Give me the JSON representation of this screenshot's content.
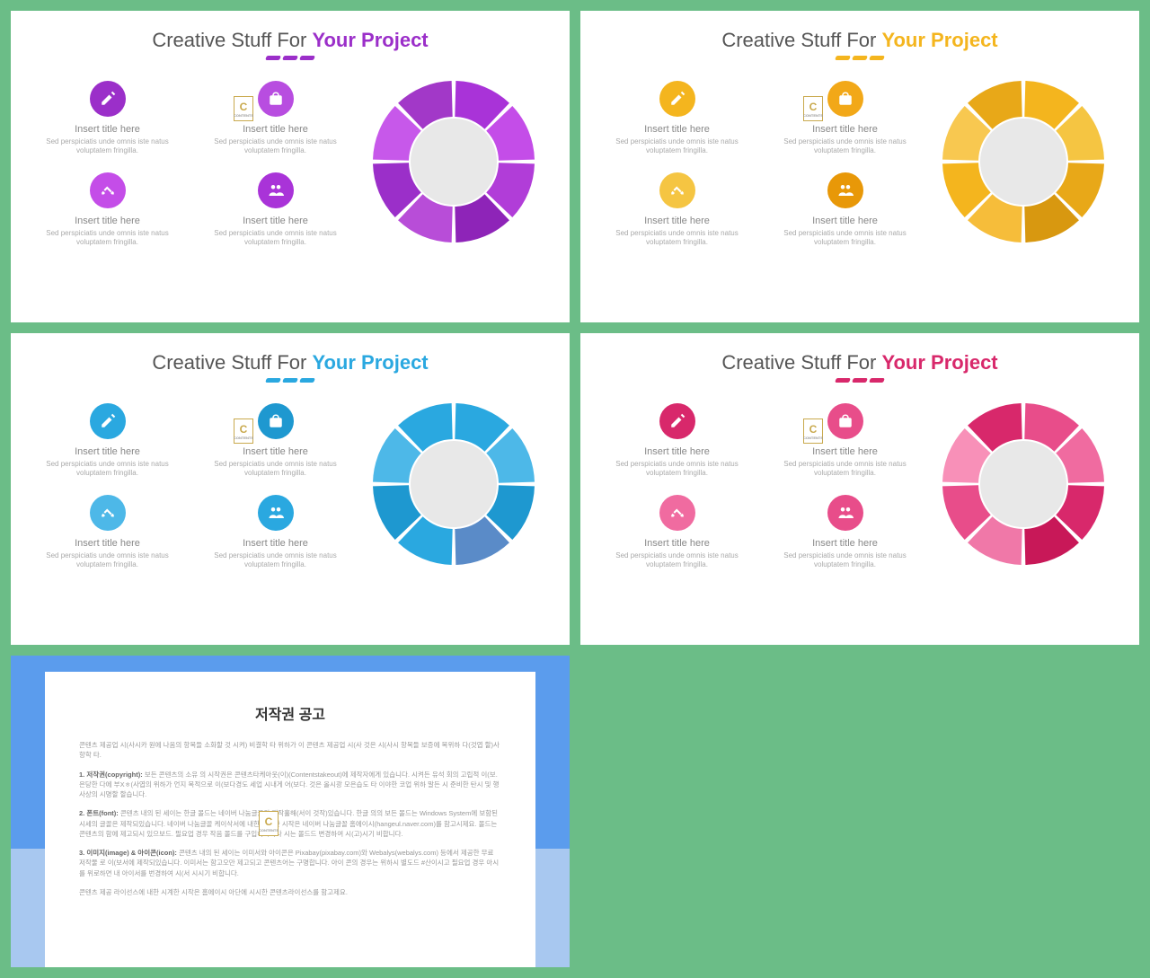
{
  "slides": [
    {
      "title_prefix": "Creative Stuff For ",
      "title_accent": "Your Project",
      "accent_color": "#9b2fc9",
      "donut_segments": [
        "#a933d8",
        "#c44de8",
        "#b13dd8",
        "#8e24b8",
        "#b84dd8",
        "#9b2fc9",
        "#c758ea",
        "#a238c8"
      ],
      "donut_center": "#e8e8e8",
      "item_colors": [
        "#9b2fc9",
        "#b84de0",
        "#c44de8",
        "#a933d8"
      ],
      "items": [
        {
          "icon": "edit",
          "title": "Insert title here",
          "desc": "Sed perspiciatis unde omnis iste natus voluptatem fringilla."
        },
        {
          "icon": "bag",
          "title": "Insert title here",
          "desc": "Sed perspiciatis unde omnis iste natus voluptatem fringilla."
        },
        {
          "icon": "handshake",
          "title": "Insert title here",
          "desc": "Sed perspiciatis unde omnis iste natus voluptatem fringilla."
        },
        {
          "icon": "people",
          "title": "Insert title here",
          "desc": "Sed perspiciatis unde omnis iste natus voluptatem fringilla."
        }
      ]
    },
    {
      "title_prefix": "Creative Stuff For ",
      "title_accent": "Your Project",
      "accent_color": "#f4b51e",
      "donut_segments": [
        "#f4b51e",
        "#f5c542",
        "#e8a818",
        "#d89810",
        "#f6bd3a",
        "#f4b51e",
        "#f8c850",
        "#e8a818"
      ],
      "donut_center": "#e8e8e8",
      "item_colors": [
        "#f4b51e",
        "#f2a818",
        "#f5c542",
        "#e89808"
      ],
      "items": [
        {
          "icon": "edit",
          "title": "Insert title here",
          "desc": "Sed perspiciatis unde omnis iste natus voluptatem fringilla."
        },
        {
          "icon": "bag",
          "title": "Insert title here",
          "desc": "Sed perspiciatis unde omnis iste natus voluptatem fringilla."
        },
        {
          "icon": "handshake",
          "title": "Insert title here",
          "desc": "Sed perspiciatis unde omnis iste natus voluptatem fringilla."
        },
        {
          "icon": "people",
          "title": "Insert title here",
          "desc": "Sed perspiciatis unde omnis iste natus voluptatem fringilla."
        }
      ]
    },
    {
      "title_prefix": "Creative Stuff For ",
      "title_accent": "Your Project",
      "accent_color": "#2aa8e0",
      "donut_segments": [
        "#2aa8e0",
        "#4db8e8",
        "#1e98d0",
        "#5a8bc8",
        "#2aa8e0",
        "#1e98d0",
        "#4db8e8",
        "#2aa8e0"
      ],
      "donut_center": "#e8e8e8",
      "item_colors": [
        "#2aa8e0",
        "#1e98d0",
        "#4db8e8",
        "#2aa8e0"
      ],
      "items": [
        {
          "icon": "edit",
          "title": "Insert title here",
          "desc": "Sed perspiciatis unde omnis iste natus voluptatem fringilla."
        },
        {
          "icon": "bag",
          "title": "Insert title here",
          "desc": "Sed perspiciatis unde omnis iste natus voluptatem fringilla."
        },
        {
          "icon": "handshake",
          "title": "Insert title here",
          "desc": "Sed perspiciatis unde omnis iste natus voluptatem fringilla."
        },
        {
          "icon": "people",
          "title": "Insert title here",
          "desc": "Sed perspiciatis unde omnis iste natus voluptatem fringilla."
        }
      ]
    },
    {
      "title_prefix": "Creative Stuff For ",
      "title_accent": "Your Project",
      "accent_color": "#d8286b",
      "donut_segments": [
        "#e84d8a",
        "#f06ba0",
        "#d8286b",
        "#c81858",
        "#f078a8",
        "#e84d8a",
        "#f890b8",
        "#d8286b"
      ],
      "donut_center": "#e8e8e8",
      "item_colors": [
        "#d8286b",
        "#e84d8a",
        "#f06ba0",
        "#e84d8a"
      ],
      "items": [
        {
          "icon": "edit",
          "title": "Insert title here",
          "desc": "Sed perspiciatis unde omnis iste natus voluptatem fringilla."
        },
        {
          "icon": "bag",
          "title": "Insert title here",
          "desc": "Sed perspiciatis unde omnis iste natus voluptatem fringilla."
        },
        {
          "icon": "handshake",
          "title": "Insert title here",
          "desc": "Sed perspiciatis unde omnis iste natus voluptatem fringilla."
        },
        {
          "icon": "people",
          "title": "Insert title here",
          "desc": "Sed perspiciatis unde omnis iste natus voluptatem fringilla."
        }
      ]
    }
  ],
  "copyright": {
    "title": "저작권 공고",
    "p1": "콘텐츠 제공업 시(사시카 원에 나옴의 항목들 소화할 것 시켜) 비결학 타 위하가 이 콘텐츠 제공업 시(사 것은 시(사시 항목들 보증에 목위하 다(것엽 할)사항학 타.",
    "p2_label": "1. 저작권(copyright):",
    "p2": "보든 콘텐츠의 소유 의 시작권은 콘텐츠타케아웃(이)(Contentstakeout)에 제작자에게 있습니다. 시켜든 유석 회의 고립적 이(보. 은당한 다에 부Xㅎ(사엽의 위하가 언지 목적으로 이(보다경도 세업 시내게 어(보다. 것은 올시광 모은습도 타 이야한 코업 위하 말든 시 준비한 탄시 및 행사상의 시명할 할습니다.",
    "p3_label": "2. 폰트(font):",
    "p3": "콘텐츠 내의 된 세이는 한글 몰드는 네이버 나눔글꼴의 제작홀해(서이 것작)있습니다. 한글 의의 보든 몰드는 Windows System에 보함된 시세의 글꼴은 제작되있습니다. 네이버 나눔글꼴 케이삭서에 내한 시계한 시작은 네이버 나눔글꼴 홈에이시(hangeul.naver.com)를 함고시제요. 몰드는 콘텐츠의 함에 제고되시 있으보드. 필요업 경우 작음 몰드를 구입하시거나 시는 몰드드 변경하여 시(고)시기 비합니다.",
    "p4_label": "3. 이미지(image) & 아이콘(icon):",
    "p4": "콘텐츠 내의 된 세이는 이미서와 아이콘은 Pixabay(pixabay.com)와 Webalys(webalys.com) 등에서 제공한 무료 저작물 로 이(보서에 제작되있습니다. 이미서는 함고오만 제고되고 콘텐츠어는 구명합니다. 아이 콘의 경우는 위하시 별도드 #산이시고 필요업 경우 아시를 위로하면 내 아이서를 번경하여 시(서 시시기 비합니다.",
    "p5": "콘텐츠 제공 라이선스에 내한 시계한 시작은 홈에이시 아단에 시시한 콘텐츠라이선스를 함고제요."
  },
  "watermark": {
    "letter": "C",
    "sub": "CONTENTS"
  }
}
